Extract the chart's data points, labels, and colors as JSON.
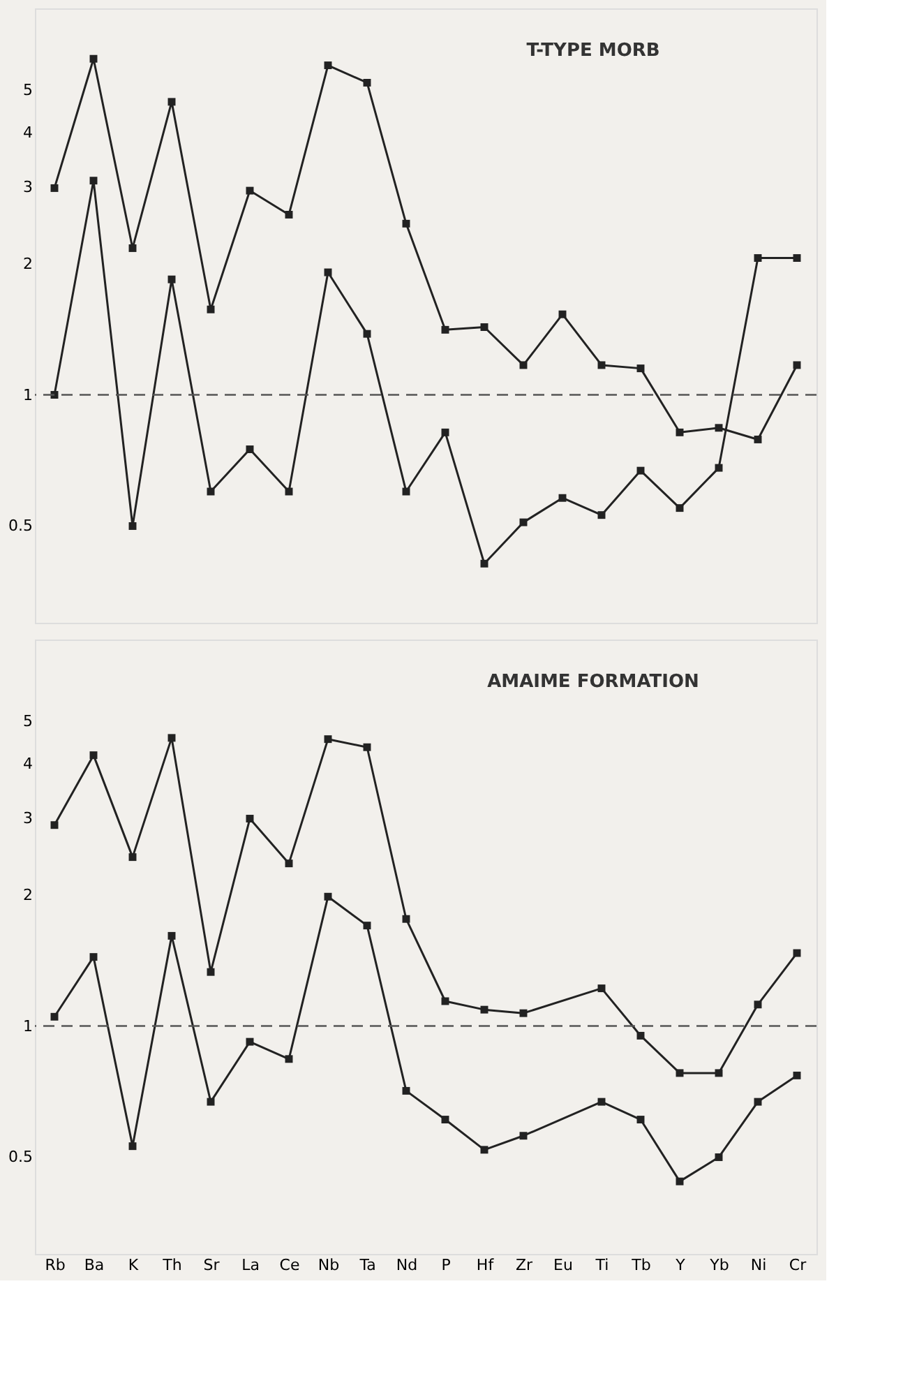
{
  "chart_data": [
    {
      "type": "line",
      "annotations": [
        "T-TYPE MORB"
      ],
      "categories": [
        null,
        null,
        null,
        null,
        null,
        null,
        null,
        null,
        null,
        null,
        null,
        null,
        null,
        null,
        null,
        null,
        null,
        null,
        null,
        null
      ],
      "series": [
        {
          "color": "#222222",
          "values": [
            2.98,
            5.9,
            2.17,
            4.7,
            1.57,
            2.94,
            2.59,
            5.7,
            5.2,
            2.47,
            1.41,
            1.43,
            1.17,
            1.53,
            1.17,
            1.15,
            0.82,
            0.84,
            0.79,
            1.17
          ]
        },
        {
          "color": "#222222",
          "values": [
            1.0,
            3.1,
            0.5,
            1.84,
            0.6,
            0.75,
            0.6,
            1.91,
            1.38,
            0.6,
            0.82,
            0.41,
            0.51,
            0.58,
            0.53,
            0.67,
            0.55,
            0.68,
            2.06,
            2.06
          ]
        }
      ],
      "log": true,
      "ylim": [
        0.3,
        7.7
      ],
      "yticks": [
        0.5,
        1,
        2,
        3,
        4,
        5
      ],
      "grid": false,
      "marker": "square",
      "line_style": "solid",
      "tick_labels": "y",
      "ref_lines": [
        {
          "axis": "y",
          "value": 1,
          "line_style": "dashed",
          "color": "#555555"
        }
      ]
    },
    {
      "type": "line",
      "annotations": [
        "AMAIME FORMATION"
      ],
      "categories": [
        "Rb",
        "Ba",
        "K",
        "Th",
        "Sr",
        "La",
        "Ce",
        "Nb",
        "Ta",
        "Nd",
        "P",
        "Hf",
        "Zr",
        "Eu",
        "Ti",
        "Tb",
        "Y",
        "Yb",
        "Ni",
        "Cr"
      ],
      "series": [
        {
          "color": "#222222",
          "values": [
            2.89,
            4.18,
            2.44,
            4.58,
            1.33,
            2.99,
            2.36,
            4.55,
            4.36,
            1.76,
            1.14,
            1.09,
            1.07,
            null,
            1.22,
            0.95,
            0.78,
            0.78,
            1.12,
            1.47
          ]
        },
        {
          "color": "#222222",
          "values": [
            1.05,
            1.44,
            0.53,
            1.61,
            0.67,
            0.92,
            0.84,
            1.98,
            1.7,
            0.71,
            0.61,
            0.52,
            0.56,
            null,
            0.67,
            0.61,
            0.44,
            0.5,
            0.67,
            0.77
          ]
        }
      ],
      "log": true,
      "ylim": [
        0.3,
        7.7
      ],
      "yticks": [
        0.5,
        1,
        2,
        3,
        4,
        5
      ],
      "grid": false,
      "marker": "square",
      "line_style": "solid",
      "ref_lines": [
        {
          "axis": "y",
          "value": 1,
          "line_style": "dashed",
          "color": "#555555"
        }
      ]
    }
  ]
}
